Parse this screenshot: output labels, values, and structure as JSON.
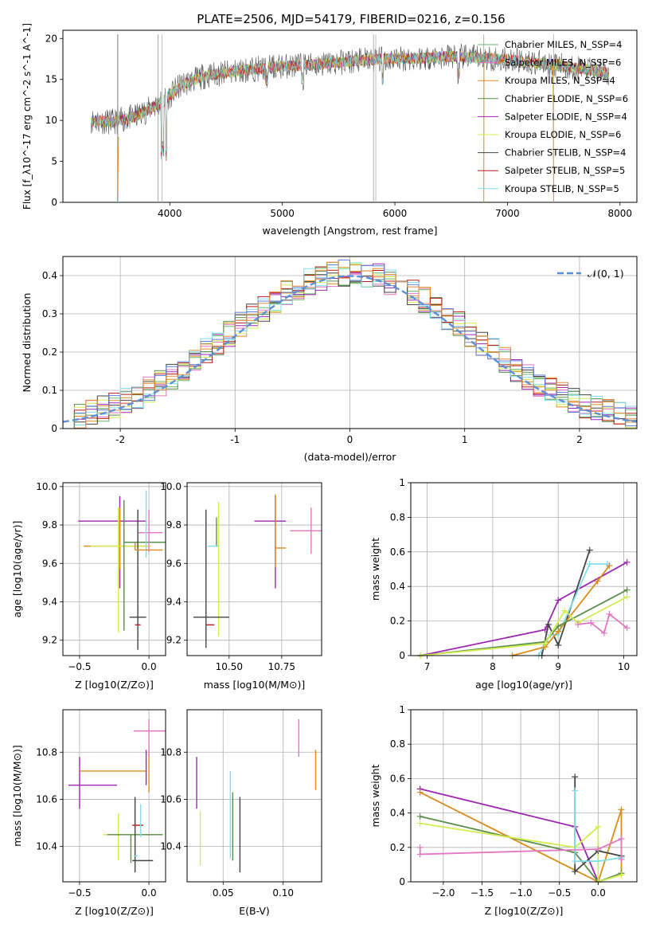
{
  "figure": {
    "title": "PLATE=2506, MJD=54179, FIBERID=0216, z=0.156"
  },
  "colors": {
    "chabrier_miles": "#66bb6a",
    "salpeter_miles": "#e377c2",
    "kroupa_miles": "#d98c1a",
    "chabrier_elodie": "#5a8f4a",
    "salpeter_elodie": "#9c27b0",
    "kroupa_elodie": "#d4ec52",
    "chabrier_stelib": "#444444",
    "salpeter_stelib": "#b71c1c",
    "kroupa_stelib": "#80deea",
    "normal_curve": "#5b8fd9",
    "extra_hist_blue": "#5b7fd9",
    "extra_hist_orange": "#e08a3c"
  },
  "chart_data": [
    {
      "id": "spectrum",
      "type": "line",
      "xlabel": "wavelength [Angstrom, rest frame]",
      "ylabel": "Flux [f_λ10^-17 erg cm^-2 s^-1 A^-1]",
      "xlim": [
        3050,
        8150
      ],
      "ylim": [
        0,
        21
      ],
      "xticks": [
        4000,
        5000,
        6000,
        7000,
        8000
      ],
      "yticks": [
        0,
        5,
        10,
        15,
        20
      ],
      "grid": false,
      "legend_position": "right",
      "legend": [
        {
          "label": "Chabrier MILES, N_SSP=4",
          "color_key": "chabrier_miles"
        },
        {
          "label": "Salpeter MILES, N_SSP=6",
          "color_key": "salpeter_miles"
        },
        {
          "label": "Kroupa MILES, N_SSP=4",
          "color_key": "kroupa_miles"
        },
        {
          "label": "Chabrier ELODIE, N_SSP=6",
          "color_key": "chabrier_elodie"
        },
        {
          "label": "Salpeter ELODIE, N_SSP=4",
          "color_key": "salpeter_elodie"
        },
        {
          "label": "Kroupa ELODIE, N_SSP=6",
          "color_key": "kroupa_elodie"
        },
        {
          "label": "Chabrier STELIB, N_SSP=4",
          "color_key": "chabrier_stelib"
        },
        {
          "label": "Salpeter STELIB, N_SSP=5",
          "color_key": "salpeter_stelib"
        },
        {
          "label": "Kroupa STELIB, N_SSP=5",
          "color_key": "kroupa_stelib"
        }
      ],
      "continuum": {
        "x": [
          3300,
          3500,
          3700,
          3900,
          4000,
          4100,
          4300,
          4500,
          4700,
          5000,
          5300,
          5600,
          5900,
          6200,
          6500,
          6800,
          7100,
          7400,
          7700,
          7900
        ],
        "y": [
          10.0,
          9.8,
          10.5,
          12.0,
          13.0,
          14.3,
          15.4,
          15.8,
          16.2,
          16.6,
          16.8,
          17.2,
          17.5,
          17.6,
          17.8,
          17.6,
          17.3,
          16.8,
          16.2,
          15.8
        ]
      },
      "spikes": [
        3535,
        3540,
        3895,
        3930,
        5810,
        5830,
        6790,
        7410
      ]
    },
    {
      "id": "residuals",
      "type": "histogram",
      "xlabel": "(data-model)/error",
      "ylabel": "Normed distribution",
      "xlim": [
        -2.5,
        2.5
      ],
      "ylim": [
        0,
        0.45
      ],
      "xticks": [
        -2,
        -1,
        0,
        1,
        2
      ],
      "yticks": [
        0.0,
        0.1,
        0.2,
        0.3,
        0.4
      ],
      "grid": true,
      "legend_position": "top-right",
      "legend": [
        {
          "label": "𝒩(0, 1)",
          "color_key": "normal_curve"
        }
      ],
      "bin_width": 0.1,
      "n_models": 9,
      "normal": {
        "mean": 0,
        "sigma": 1
      }
    },
    {
      "id": "age_vs_Z",
      "type": "errorbar",
      "xlabel": "Z [log10(Z/Z⊙)]",
      "ylabel": "age [log10(age/yr)]",
      "xlim": [
        -0.62,
        0.12
      ],
      "ylim": [
        9.12,
        10.02
      ],
      "xticks": [
        -0.5,
        0.0
      ],
      "xticklabels": [
        "−0.5",
        "0.0"
      ],
      "yticks": [
        9.2,
        9.4,
        9.6,
        9.8,
        10.0
      ],
      "yticklabels": [
        "9.2",
        "9.4",
        "9.6",
        "9.8",
        "10.0"
      ],
      "points": [
        {
          "x": -0.21,
          "xerr": [
            0.3,
            0.19
          ],
          "y": 9.82,
          "yerr": [
            0.35,
            0.13
          ],
          "color_key": "salpeter_elodie"
        },
        {
          "x": -0.21,
          "xerr": [
            0.26,
            0.21
          ],
          "y": 9.69,
          "yerr": [
            0.12,
            0.2
          ],
          "color_key": "kroupa_miles"
        },
        {
          "x": -0.22,
          "xerr": [
            0.2,
            0.24
          ],
          "y": 9.69,
          "yerr": [
            0.45,
            0.2
          ],
          "color_key": "kroupa_elodie"
        },
        {
          "x": -0.18,
          "xerr": [
            0.0,
            0.3
          ],
          "y": 9.71,
          "yerr": [
            0.46,
            0.22
          ],
          "color_key": "chabrier_elodie"
        },
        {
          "x": 0.0,
          "xerr": [
            0.08,
            0.1
          ],
          "y": 9.76,
          "yerr": [
            0.1,
            0.12
          ],
          "color_key": "salpeter_miles"
        },
        {
          "x": -0.02,
          "xerr": [
            0.0,
            0.0
          ],
          "y": 9.8,
          "yerr": [
            0.17,
            0.18
          ],
          "color_key": "kroupa_stelib"
        },
        {
          "x": -0.08,
          "xerr": [
            0.06,
            0.06
          ],
          "y": 9.32,
          "yerr": [
            0.17,
            0.56
          ],
          "color_key": "chabrier_stelib"
        },
        {
          "x": -0.06,
          "xerr": [
            0.04,
            0.0
          ],
          "y": 9.28,
          "yerr": [
            0.0,
            0.0
          ],
          "color_key": "salpeter_stelib"
        },
        {
          "x": -0.1,
          "xerr": [
            0.0,
            0.2
          ],
          "y": 9.67,
          "yerr": [
            0.0,
            0.04
          ],
          "color_key": "kroupa_miles"
        }
      ]
    },
    {
      "id": "age_vs_mass",
      "type": "errorbar",
      "xlabel": "mass [log10(M/M⊙)]",
      "ylabel": "",
      "xlim": [
        10.3,
        10.94
      ],
      "ylim": [
        9.12,
        10.02
      ],
      "xticks": [
        10.5,
        10.75
      ],
      "xticklabels": [
        "10.50",
        "10.75"
      ],
      "yticks": [
        9.2,
        9.4,
        9.6,
        9.8,
        10.0
      ],
      "yticklabels": [
        "9.2",
        "9.4",
        "9.6",
        "9.8",
        "10.0"
      ],
      "points": [
        {
          "x": 10.72,
          "xerr": [
            0.1,
            0.05
          ],
          "y": 9.82,
          "yerr": [
            0.35,
            0.13
          ],
          "color_key": "salpeter_elodie"
        },
        {
          "x": 10.72,
          "xerr": [
            0.0,
            0.05
          ],
          "y": 9.68,
          "yerr": [
            0.1,
            0.28
          ],
          "color_key": "kroupa_miles"
        },
        {
          "x": 10.45,
          "xerr": [
            0.02,
            0.0
          ],
          "y": 9.69,
          "yerr": [
            0.47,
            0.23
          ],
          "color_key": "kroupa_elodie"
        },
        {
          "x": 10.44,
          "xerr": [
            0.0,
            0.0
          ],
          "y": 9.69,
          "yerr": [
            0.0,
            0.15
          ],
          "color_key": "chabrier_elodie"
        },
        {
          "x": 10.45,
          "xerr": [
            0.05,
            0.0
          ],
          "y": 9.69,
          "yerr": [
            0.0,
            0.0
          ],
          "color_key": "kroupa_stelib"
        },
        {
          "x": 10.89,
          "xerr": [
            0.1,
            0.05
          ],
          "y": 9.77,
          "yerr": [
            0.12,
            0.12
          ],
          "color_key": "salpeter_miles"
        },
        {
          "x": 10.39,
          "xerr": [
            0.06,
            0.11
          ],
          "y": 9.32,
          "yerr": [
            0.16,
            0.56
          ],
          "color_key": "chabrier_stelib"
        },
        {
          "x": 10.5,
          "xerr": [
            0.0,
            0.0
          ],
          "y": 9.28,
          "yerr": [
            0.0,
            0.0
          ],
          "color_key": "salpeter_stelib"
        },
        {
          "x": 10.43,
          "xerr": [
            0.04,
            0.0
          ],
          "y": 9.28,
          "yerr": [
            0.0,
            0.0
          ],
          "color_key": "salpeter_stelib"
        }
      ]
    },
    {
      "id": "massweight_vs_age",
      "type": "line",
      "xlabel": "age [log10(age/yr)]",
      "ylabel": "mass weight",
      "xlim": [
        6.75,
        10.2
      ],
      "ylim": [
        0,
        1
      ],
      "xticks": [
        7,
        8,
        9,
        10
      ],
      "yticks": [
        0.0,
        0.2,
        0.4,
        0.6,
        0.8,
        1.0
      ],
      "grid": true,
      "series": [
        {
          "color_key": "salpeter_elodie",
          "x": [
            6.9,
            8.8,
            9.0,
            10.05
          ],
          "y": [
            0.0,
            0.15,
            0.32,
            0.54
          ]
        },
        {
          "color_key": "chabrier_stelib",
          "x": [
            8.75,
            8.85,
            9.0,
            9.48
          ],
          "y": [
            0.0,
            0.18,
            0.06,
            0.61
          ]
        },
        {
          "color_key": "kroupa_stelib",
          "x": [
            8.7,
            8.88,
            9.0,
            9.48,
            9.75
          ],
          "y": [
            0.0,
            0.12,
            0.12,
            0.53,
            0.53
          ]
        },
        {
          "color_key": "kroupa_miles",
          "x": [
            8.3,
            8.8,
            9.0,
            9.6,
            9.78
          ],
          "y": [
            0.0,
            0.05,
            0.14,
            0.43,
            0.52
          ]
        },
        {
          "color_key": "chabrier_elodie",
          "x": [
            6.9,
            8.8,
            9.0,
            10.05
          ],
          "y": [
            0.0,
            0.08,
            0.17,
            0.38
          ]
        },
        {
          "color_key": "kroupa_elodie",
          "x": [
            6.9,
            8.8,
            9.1,
            9.3,
            10.05
          ],
          "y": [
            0.0,
            0.07,
            0.26,
            0.19,
            0.34
          ]
        },
        {
          "color_key": "salpeter_miles",
          "x": [
            9.3,
            9.5,
            9.7,
            9.78,
            10.05
          ],
          "y": [
            0.18,
            0.19,
            0.13,
            0.24,
            0.16
          ]
        }
      ]
    },
    {
      "id": "mass_vs_Z",
      "type": "errorbar",
      "xlabel": "Z [log10(Z/Z⊙)]",
      "ylabel": "mass [log10(M/M⊙)]",
      "xlim": [
        -0.62,
        0.12
      ],
      "ylim": [
        10.25,
        10.98
      ],
      "xticks": [
        -0.5,
        0.0
      ],
      "xticklabels": [
        "−0.5",
        "0.0"
      ],
      "yticks": [
        10.4,
        10.6,
        10.8
      ],
      "yticklabels": [
        "10.4",
        "10.6",
        "10.8"
      ],
      "points": [
        {
          "x": -0.5,
          "xerr": [
            0.08,
            0.27
          ],
          "y": 10.66,
          "yerr": [
            0.1,
            0.12
          ],
          "color_key": "salpeter_elodie"
        },
        {
          "x": -0.2,
          "xerr": [
            0.3,
            0.18
          ],
          "y": 10.72,
          "yerr": [
            0.0,
            0.0
          ],
          "color_key": "kroupa_miles"
        },
        {
          "x": 0.0,
          "xerr": [
            0.0,
            0.0
          ],
          "y": 10.72,
          "yerr": [
            0.09,
            0.09
          ],
          "color_key": "kroupa_miles"
        },
        {
          "x": -0.02,
          "xerr": [
            0.0,
            0.0
          ],
          "y": 10.72,
          "yerr": [
            0.06,
            0.09
          ],
          "color_key": "salpeter_elodie"
        },
        {
          "x": 0.0,
          "xerr": [
            0.11,
            0.12
          ],
          "y": 10.89,
          "yerr": [
            0.11,
            0.05
          ],
          "color_key": "salpeter_miles"
        },
        {
          "x": -0.18,
          "xerr": [
            0.15,
            0.28
          ],
          "y": 10.45,
          "yerr": [
            0.0,
            0.0
          ],
          "color_key": "kroupa_elodie"
        },
        {
          "x": -0.22,
          "xerr": [
            0.0,
            0.0
          ],
          "y": 10.45,
          "yerr": [
            0.11,
            0.09
          ],
          "color_key": "kroupa_elodie"
        },
        {
          "x": -0.1,
          "xerr": [
            0.2,
            0.2
          ],
          "y": 10.45,
          "yerr": [
            0.0,
            0.0
          ],
          "color_key": "chabrier_elodie"
        },
        {
          "x": -0.13,
          "xerr": [
            0.0,
            0.0
          ],
          "y": 10.45,
          "yerr": [
            0.12,
            0.0
          ],
          "color_key": "chabrier_elodie"
        },
        {
          "x": -0.1,
          "xerr": [
            0.0,
            0.0
          ],
          "y": 10.45,
          "yerr": [
            0.16,
            0.16
          ],
          "color_key": "chabrier_stelib"
        },
        {
          "x": -0.07,
          "xerr": [
            0.05,
            0.1
          ],
          "y": 10.34,
          "yerr": [
            0.0,
            0.0
          ],
          "color_key": "chabrier_stelib"
        },
        {
          "x": -0.08,
          "xerr": [
            0.04,
            0.04
          ],
          "y": 10.49,
          "yerr": [
            0.0,
            0.0
          ],
          "color_key": "salpeter_stelib"
        },
        {
          "x": -0.08,
          "xerr": [
            0.03,
            0.0
          ],
          "y": 10.36,
          "yerr": [
            0.0,
            0.0
          ],
          "color_key": "kroupa_stelib"
        },
        {
          "x": -0.06,
          "xerr": [
            0.0,
            0.0
          ],
          "y": 10.5,
          "yerr": [
            0.06,
            0.08
          ],
          "color_key": "kroupa_stelib"
        }
      ]
    },
    {
      "id": "mass_vs_ebv",
      "type": "errorbar",
      "xlabel": "E(B-V)",
      "ylabel": "",
      "xlim": [
        0.02,
        0.132
      ],
      "ylim": [
        10.25,
        10.98
      ],
      "xticks": [
        0.05,
        0.1
      ],
      "xticklabels": [
        "0.05",
        "0.10"
      ],
      "yticks": [
        10.4,
        10.6,
        10.8
      ],
      "yticklabels": [
        "10.4",
        "10.6",
        "10.8"
      ],
      "points": [
        {
          "x": 0.028,
          "xerr": [
            0,
            0
          ],
          "y": 10.67,
          "yerr": [
            0.11,
            0.11
          ],
          "color_key": "salpeter_elodie"
        },
        {
          "x": 0.031,
          "xerr": [
            0,
            0
          ],
          "y": 10.45,
          "yerr": [
            0.13,
            0.1
          ],
          "color_key": "kroupa_elodie"
        },
        {
          "x": 0.056,
          "xerr": [
            0,
            0
          ],
          "y": 10.52,
          "yerr": [
            0.17,
            0.2
          ],
          "color_key": "kroupa_stelib"
        },
        {
          "x": 0.058,
          "xerr": [
            0,
            0
          ],
          "y": 10.47,
          "yerr": [
            0.13,
            0.16
          ],
          "color_key": "chabrier_elodie"
        },
        {
          "x": 0.064,
          "xerr": [
            0,
            0
          ],
          "y": 10.45,
          "yerr": [
            0.16,
            0.16
          ],
          "color_key": "chabrier_stelib"
        },
        {
          "x": 0.113,
          "xerr": [
            0,
            0
          ],
          "y": 10.86,
          "yerr": [
            0.08,
            0.08
          ],
          "color_key": "salpeter_miles"
        },
        {
          "x": 0.127,
          "xerr": [
            0,
            0
          ],
          "y": 10.72,
          "yerr": [
            0.08,
            0.09
          ],
          "color_key": "kroupa_miles"
        }
      ]
    },
    {
      "id": "massweight_vs_Z",
      "type": "line",
      "xlabel": "Z [log10(Z/Z⊙)]",
      "ylabel": "mass weight",
      "xlim": [
        -2.42,
        0.5
      ],
      "ylim": [
        0,
        1
      ],
      "xticks": [
        -2.0,
        -1.5,
        -1.0,
        -0.5,
        0.0
      ],
      "xticklabels": [
        "−2.0",
        "−1.5",
        "−1.0",
        "−0.5",
        "0.0"
      ],
      "yticks": [
        0.0,
        0.2,
        0.4,
        0.6,
        0.8,
        1.0
      ],
      "grid": true,
      "series": [
        {
          "color_key": "salpeter_elodie",
          "x": [
            -2.3,
            -0.3,
            0.0
          ],
          "y": [
            0.54,
            0.32,
            0.0
          ]
        },
        {
          "color_key": "kroupa_miles",
          "x": [
            -2.3,
            0.0,
            0.3,
            0.3
          ],
          "y": [
            0.52,
            0.0,
            0.42,
            0.05
          ]
        },
        {
          "color_key": "chabrier_elodie",
          "x": [
            -2.3,
            -0.3,
            0.0,
            0.3
          ],
          "y": [
            0.38,
            0.17,
            0.0,
            0.05
          ]
        },
        {
          "color_key": "kroupa_elodie",
          "x": [
            -2.3,
            -0.3,
            0.0,
            0.0,
            0.3
          ],
          "y": [
            0.34,
            0.2,
            0.32,
            0.0,
            0.04
          ]
        },
        {
          "color_key": "chabrier_stelib",
          "x": [
            -0.3,
            -0.3,
            0.0,
            0.3
          ],
          "y": [
            0.61,
            0.06,
            0.18,
            0.15
          ]
        },
        {
          "color_key": "kroupa_stelib",
          "x": [
            -0.3,
            -0.3,
            0.0,
            0.3
          ],
          "y": [
            0.53,
            0.12,
            0.12,
            0.14
          ]
        },
        {
          "color_key": "salpeter_miles",
          "x": [
            -2.3,
            -2.3,
            0.0,
            0.3,
            0.3
          ],
          "y": [
            0.2,
            0.16,
            0.19,
            0.25,
            0.13
          ]
        }
      ]
    }
  ]
}
